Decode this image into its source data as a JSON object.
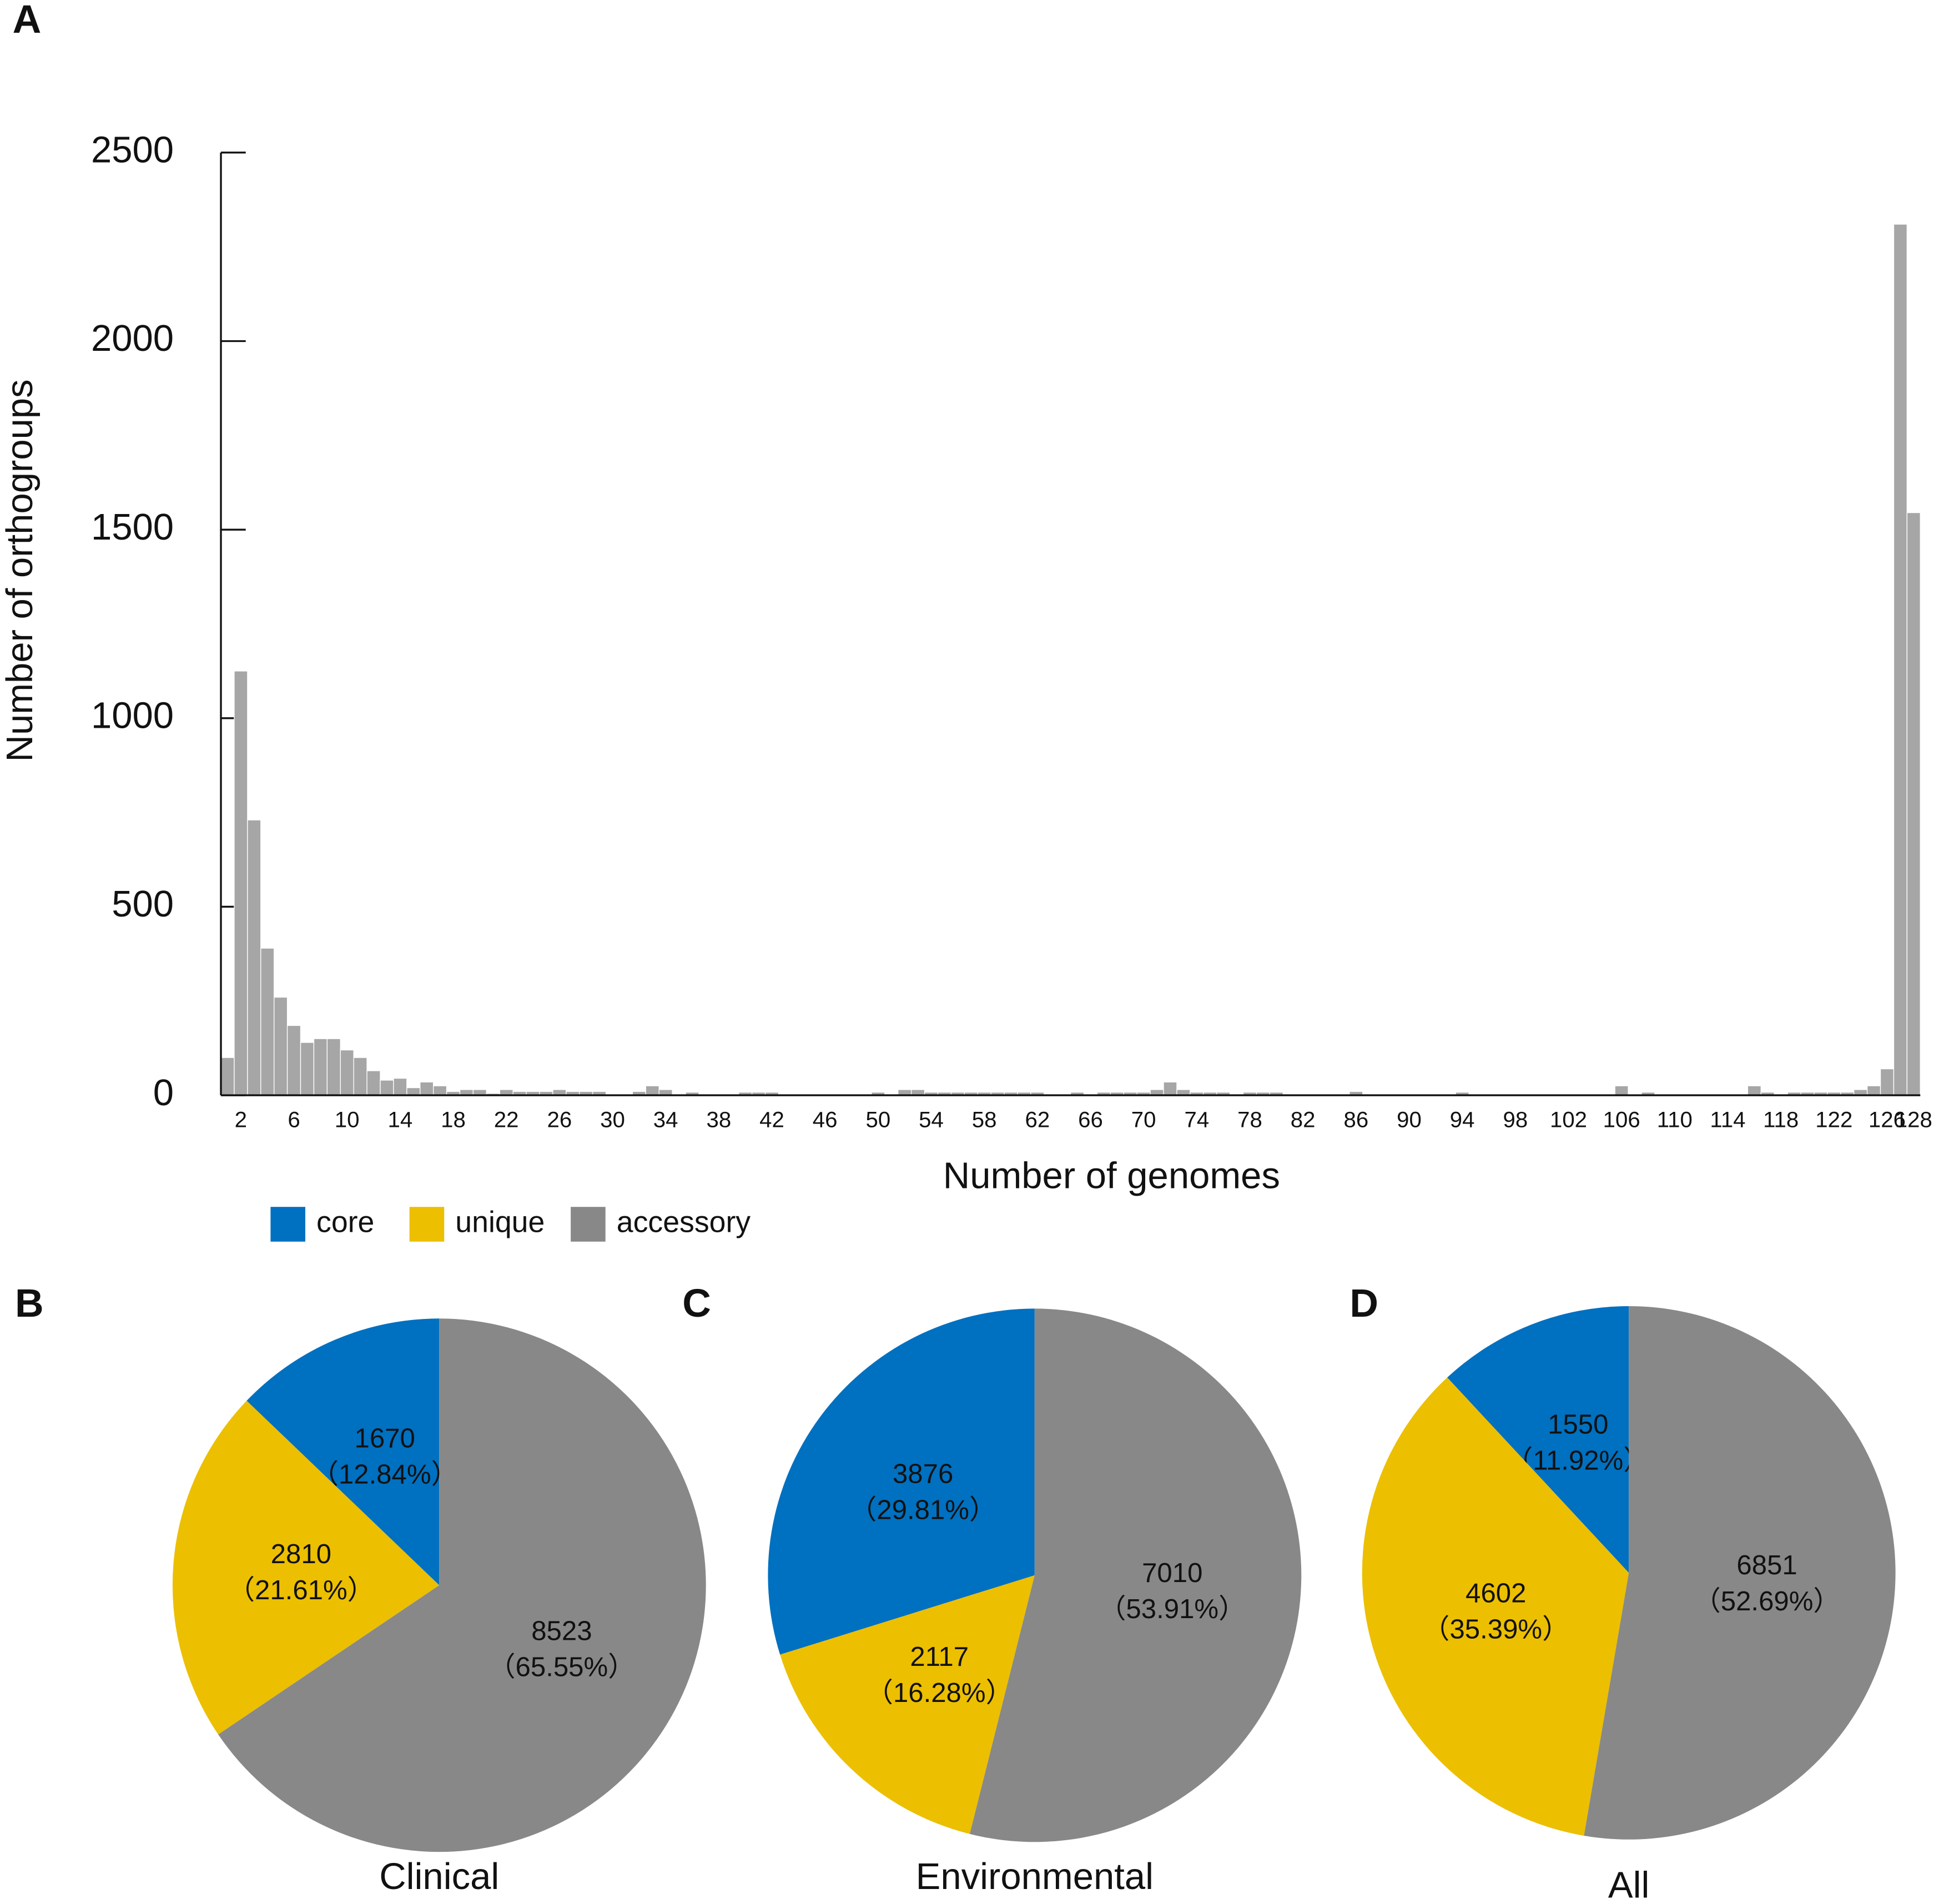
{
  "chart_data": [
    {
      "type": "bar",
      "panel": "A",
      "xlabel": "Number of genomes",
      "ylabel": "Number of orthogroups",
      "color": "#a6a6a6",
      "categories": [
        null,
        2,
        null,
        null,
        null,
        6,
        null,
        null,
        null,
        10,
        null,
        null,
        null,
        14,
        null,
        null,
        null,
        18,
        null,
        null,
        null,
        22,
        null,
        null,
        null,
        26,
        null,
        null,
        null,
        30,
        null,
        null,
        null,
        34,
        null,
        null,
        null,
        38,
        null,
        null,
        null,
        42,
        null,
        null,
        null,
        46,
        null,
        null,
        null,
        50,
        null,
        null,
        null,
        54,
        null,
        null,
        null,
        58,
        null,
        null,
        null,
        62,
        null,
        null,
        null,
        66,
        null,
        null,
        null,
        70,
        null,
        null,
        null,
        74,
        null,
        null,
        null,
        78,
        null,
        null,
        null,
        82,
        null,
        null,
        null,
        86,
        null,
        null,
        null,
        90,
        null,
        null,
        null,
        94,
        null,
        null,
        null,
        98,
        null,
        null,
        null,
        102,
        null,
        null,
        null,
        106,
        null,
        null,
        null,
        110,
        null,
        null,
        null,
        114,
        null,
        null,
        null,
        118,
        null,
        null,
        null,
        122,
        null,
        null,
        null,
        126,
        null,
        128
      ],
      "values": [
        100,
        1125,
        730,
        390,
        260,
        185,
        140,
        150,
        150,
        120,
        100,
        65,
        40,
        45,
        20,
        35,
        25,
        10,
        15,
        15,
        5,
        15,
        10,
        10,
        10,
        15,
        10,
        10,
        10,
        0,
        0,
        10,
        25,
        15,
        0,
        8,
        0,
        0,
        0,
        8,
        8,
        8,
        0,
        0,
        0,
        0,
        0,
        0,
        0,
        8,
        0,
        15,
        15,
        8,
        8,
        8,
        8,
        8,
        8,
        8,
        8,
        8,
        0,
        0,
        8,
        0,
        8,
        8,
        8,
        8,
        15,
        35,
        15,
        8,
        8,
        8,
        0,
        8,
        8,
        8,
        0,
        0,
        0,
        0,
        0,
        10,
        0,
        0,
        0,
        0,
        0,
        0,
        0,
        8,
        0,
        0,
        0,
        0,
        0,
        0,
        0,
        0,
        0,
        0,
        0,
        25,
        0,
        8,
        0,
        0,
        0,
        0,
        0,
        0,
        0,
        25,
        8,
        0,
        8,
        8,
        8,
        8,
        8,
        15,
        25,
        70,
        2310,
        1545
      ],
      "ylim": [
        0,
        2500
      ],
      "yticks": [
        0,
        500,
        1000,
        1500,
        2000,
        2500
      ]
    },
    {
      "type": "pie",
      "panel": "B",
      "title": "Clinical",
      "values": [
        1670,
        2810,
        8523
      ],
      "percentages": [
        12.84,
        21.61,
        65.55
      ],
      "percentage_labels": [
        "（12.84%）",
        "（21.61%）",
        "（65.55%）"
      ]
    },
    {
      "type": "pie",
      "panel": "C",
      "title": "Environmental",
      "values": [
        3876,
        2117,
        7010
      ],
      "percentages": [
        29.81,
        16.28,
        53.91
      ],
      "percentage_labels": [
        "（29.81%）",
        "（16.28%）",
        "（53.91%）"
      ]
    },
    {
      "type": "pie",
      "panel": "D",
      "title": "All",
      "values": [
        1550,
        4602,
        6851
      ],
      "percentages": [
        11.92,
        35.39,
        52.69
      ],
      "percentage_labels": [
        "（11.92%）",
        "（35.39%）",
        "（52.69%）"
      ]
    }
  ],
  "legend": [
    {
      "name": "core",
      "color": "#0070c0"
    },
    {
      "name": "unique",
      "color": "#ecbf00"
    },
    {
      "name": "accessory",
      "color": "#888888"
    }
  ]
}
